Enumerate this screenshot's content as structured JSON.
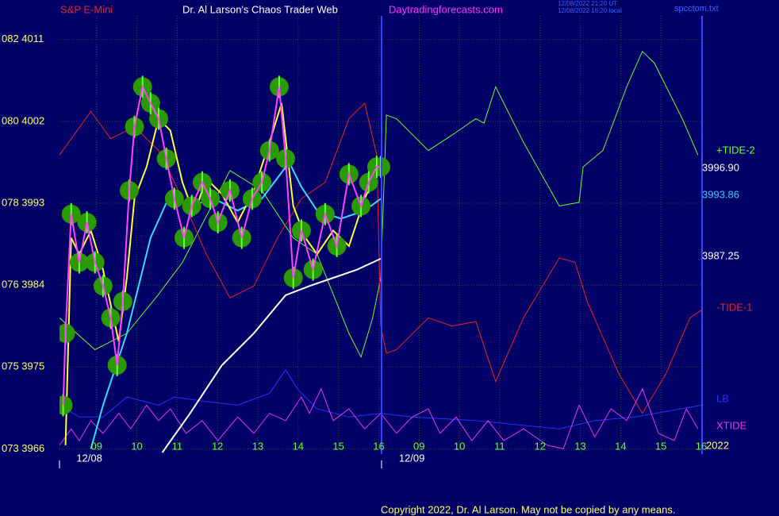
{
  "chart_data": {
    "type": "line",
    "header": {
      "source": "S&P E-Mini",
      "title": "Dr. Al Larson's Chaos Trader Web",
      "website": "Daytradingforecasts.com",
      "timestamps": [
        "12/08/2022 21:20 UT",
        "12/08/2022 16:20 local"
      ],
      "file": "spcctom.txt"
    },
    "copyright": "Copyright 2022, Dr. Al Larson. May not be copied by any means.",
    "year_label": "2022",
    "xlim": [
      8.08,
      24.02
    ],
    "xticks": [
      {
        "value": 9,
        "label": "09"
      },
      10,
      11,
      12,
      13,
      14,
      15,
      16,
      {
        "value": 17,
        "label": "09"
      },
      {
        "value": 18,
        "label": "10"
      },
      {
        "value": 19,
        "label": "11"
      },
      {
        "value": 20,
        "label": "12"
      },
      {
        "value": 21,
        "label": "13"
      },
      {
        "value": 22,
        "label": "14"
      },
      {
        "value": 23,
        "label": "15"
      },
      {
        "value": 24,
        "label": "16"
      }
    ],
    "x_dates": [
      {
        "value": 8.82,
        "label": "12/08"
      },
      {
        "value": 16.82,
        "label": "12/09"
      }
    ],
    "ylim": [
      3965.6,
      4013.6
    ],
    "yticks": [
      {
        "value": 3966,
        "label": "073 3966"
      },
      {
        "value": 3975,
        "label": "075 3975"
      },
      {
        "value": 3984,
        "label": "076 3984"
      },
      {
        "value": 3993,
        "label": "078 3993"
      },
      {
        "value": 4002,
        "label": "080 4002"
      },
      {
        "value": 4011,
        "label": "082 4011"
      }
    ],
    "grid": true,
    "annotations": [
      {
        "text": "3996.90",
        "color": "#ffffff"
      },
      {
        "text": "3993.86",
        "color": "#33ccff"
      },
      {
        "text": "3987.25",
        "color": "#ffffff"
      }
    ],
    "series": [
      {
        "name": "+TIDE-2",
        "color": "#66ff33",
        "x": [
          8.08,
          8.96,
          9.75,
          10.54,
          11.13,
          12.31,
          13.1,
          13.88,
          14.47,
          15.26,
          15.56,
          15.85,
          16.05,
          16.19,
          16.44,
          17.23,
          17.82,
          18.41,
          18.61,
          18.9,
          19.59,
          20.48,
          20.97,
          21.07,
          21.56,
          22.15,
          22.54,
          22.84,
          23.53,
          23.92
        ],
        "values": [
          3980.4,
          3976.9,
          3978.7,
          3983.0,
          3986.5,
          3996.6,
          3994.4,
          3989.2,
          3987.4,
          3978.7,
          3976.1,
          3980.4,
          3984.8,
          4002.7,
          4002.3,
          3998.8,
          4000.5,
          4002.3,
          4001.8,
          4005.8,
          3999.7,
          3992.7,
          3993.1,
          3997.0,
          3998.8,
          4005.8,
          4009.7,
          4008.4,
          4002.3,
          3998.3
        ]
      },
      {
        "name": "-TIDE-1",
        "color": "#ee2222",
        "x": [
          8.08,
          8.86,
          9.35,
          9.94,
          10.54,
          11.13,
          11.72,
          12.31,
          12.9,
          13.49,
          14.08,
          14.67,
          15.26,
          15.65,
          15.95,
          16.05,
          16.19,
          16.44,
          17.23,
          17.82,
          18.41,
          18.9,
          19.59,
          20.48,
          20.87,
          21.17,
          21.95,
          22.54,
          23.13,
          23.72,
          24.02
        ],
        "values": [
          3998.3,
          4003.1,
          4000.1,
          4001.4,
          3998.8,
          3993.5,
          3987.4,
          3982.6,
          3983.9,
          3989.2,
          3993.5,
          3995.3,
          4002.3,
          4004.0,
          3998.3,
          3979.5,
          3976.5,
          3976.9,
          3980.4,
          3979.5,
          3980.0,
          3973.4,
          3980.4,
          3987.0,
          3986.5,
          3982.2,
          3974.3,
          3969.9,
          3974.3,
          3980.4,
          3981.3
        ]
      },
      {
        "name": "LB",
        "color": "#2233ff",
        "x": [
          8.08,
          8.57,
          9.16,
          9.75,
          10.54,
          10.93,
          11.72,
          12.5,
          13.29,
          13.69,
          13.98,
          14.47,
          15.26,
          16.05,
          16.83,
          18.41,
          20.48,
          21.36,
          22.35,
          24.02
        ],
        "values": [
          3970.8,
          3969.5,
          3969.5,
          3971.7,
          3970.8,
          3971.7,
          3971.2,
          3970.8,
          3972.1,
          3974.7,
          3972.6,
          3970.4,
          3969.5,
          3969.9,
          3969.5,
          3969.1,
          3968.2,
          3969.1,
          3969.5,
          3970.8
        ]
      },
      {
        "name": "XTIDE",
        "color": "#ee33ee",
        "x": [
          8.08,
          8.37,
          8.57,
          8.86,
          9.16,
          9.55,
          9.85,
          10.24,
          10.54,
          10.83,
          11.22,
          11.62,
          12.01,
          12.5,
          12.9,
          13.29,
          13.69,
          14.08,
          14.28,
          14.57,
          14.87,
          15.26,
          15.65,
          16.05,
          16.44,
          16.83,
          17.23,
          17.52,
          17.92,
          18.31,
          18.71,
          19.1,
          19.59,
          20.18,
          20.58,
          20.97,
          21.36,
          21.76,
          22.15,
          22.54,
          22.94,
          23.33,
          23.63,
          23.92
        ],
        "values": [
          3966.4,
          3968.2,
          3966.9,
          3969.1,
          3967.7,
          3969.9,
          3968.2,
          3970.8,
          3969.1,
          3970.4,
          3967.7,
          3969.1,
          3966.9,
          3969.5,
          3967.7,
          3969.9,
          3969.1,
          3971.7,
          3969.9,
          3972.6,
          3969.1,
          3970.4,
          3968.2,
          3969.9,
          3967.7,
          3969.5,
          3970.4,
          3967.7,
          3969.5,
          3966.9,
          3969.1,
          3966.9,
          3968.2,
          3966.4,
          3966.0,
          3970.8,
          3967.3,
          3970.4,
          3969.1,
          3972.6,
          3967.7,
          3966.9,
          3970.4,
          3968.2
        ]
      },
      {
        "color": "#ffffff",
        "width": 2,
        "x": [
          10.63,
          11.32,
          12.11,
          12.9,
          13.69,
          14.28,
          14.87,
          15.46,
          16.05
        ],
        "values": [
          3965.6,
          3969.9,
          3975.2,
          3978.7,
          3982.9,
          3983.9,
          3984.8,
          3985.7,
          3986.9
        ]
      },
      {
        "color": "#33ddff",
        "width": 2,
        "x": [
          8.86,
          9.16,
          9.75,
          10.34,
          10.83,
          11.32,
          11.91,
          12.5,
          13.1,
          13.78,
          14.08,
          14.47,
          15.06,
          15.65,
          16.05
        ],
        "values": [
          3966.0,
          3970.8,
          3978.7,
          3989.2,
          3994.0,
          3992.7,
          3993.5,
          3992.2,
          3993.5,
          3997.5,
          3994.8,
          3992.2,
          3991.3,
          3992.2,
          3993.5
        ]
      },
      {
        "color": "#ffff33",
        "width": 2,
        "on_top": true,
        "x": [
          8.23,
          8.37,
          8.57,
          8.86,
          9.16,
          9.55,
          9.75,
          9.94,
          10.24,
          10.54,
          10.83,
          11.13,
          11.42,
          11.72,
          12.11,
          12.5,
          12.9,
          13.29,
          13.59,
          13.88,
          14.18,
          14.47,
          14.87,
          15.26,
          15.65,
          16.05
        ],
        "values": [
          3966.4,
          3989.2,
          3987.4,
          3990.0,
          3985.7,
          3977.8,
          3984.8,
          3993.5,
          3997.0,
          4002.3,
          4001.0,
          3995.3,
          3991.8,
          3995.7,
          3994.0,
          3990.9,
          3994.4,
          3999.7,
          4004.0,
          3992.7,
          3989.2,
          3987.4,
          3990.0,
          3988.3,
          3993.5,
          3997.5
        ]
      },
      {
        "color": "#ff44ff",
        "width": 2,
        "marker_color": "#2a9a00",
        "bar_color": "#66ff33",
        "on_top": true,
        "x": [
          8.17,
          8.23,
          8.37,
          8.57,
          8.76,
          8.96,
          9.16,
          9.35,
          9.51,
          9.65,
          9.81,
          9.94,
          10.14,
          10.34,
          10.54,
          10.73,
          10.93,
          11.17,
          11.36,
          11.62,
          11.82,
          12.01,
          12.31,
          12.6,
          12.86,
          13.1,
          13.29,
          13.53,
          13.69,
          13.88,
          14.08,
          14.37,
          14.67,
          14.96,
          15.26,
          15.56,
          15.75,
          15.95,
          16.05
        ],
        "values": [
          3970.8,
          3978.7,
          3991.8,
          3986.5,
          3990.9,
          3986.5,
          3983.9,
          3980.4,
          3975.2,
          3982.2,
          3994.4,
          4001.4,
          4005.8,
          4004.0,
          4002.3,
          3997.9,
          3993.5,
          3989.2,
          3992.7,
          3995.3,
          3993.5,
          3990.9,
          3994.4,
          3989.2,
          3993.5,
          3995.3,
          3998.8,
          4005.8,
          3997.9,
          3984.8,
          3990.0,
          3985.7,
          3991.8,
          3988.3,
          3996.2,
          3992.7,
          3995.3,
          3997.0,
          3997.0
        ]
      }
    ]
  }
}
